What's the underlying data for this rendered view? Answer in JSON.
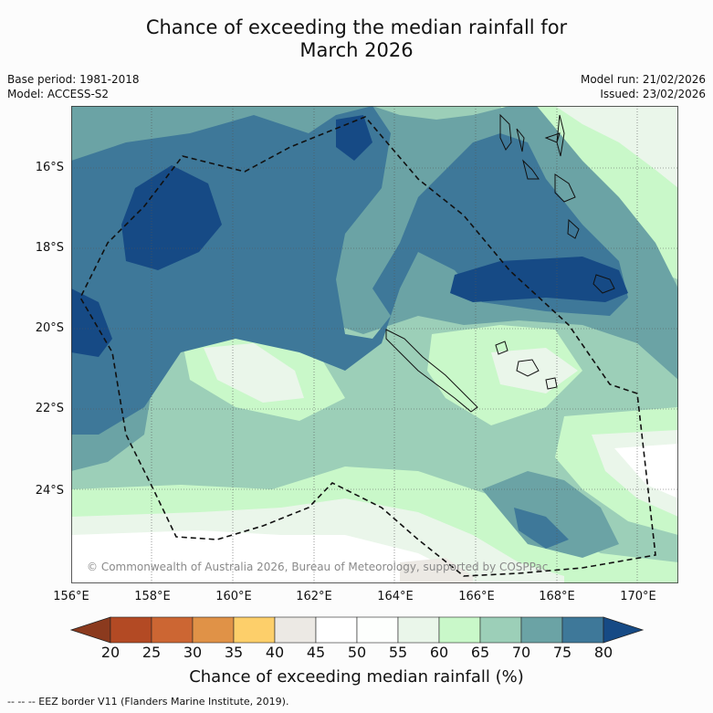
{
  "title_line1": "Chance of exceeding the median rainfall for",
  "title_line2": "March 2026",
  "base_period": "Base period: 1981-2018",
  "model": "Model: ACCESS-S2",
  "model_run": "Model run: 21/02/2026",
  "issued": "Issued: 23/02/2026",
  "lat_labels": [
    "16°S",
    "18°S",
    "20°S",
    "22°S",
    "24°S"
  ],
  "lon_labels": [
    "156°E",
    "158°E",
    "160°E",
    "162°E",
    "164°E",
    "166°E",
    "168°E",
    "170°E"
  ],
  "colorbar": {
    "ticks": [
      "20",
      "25",
      "30",
      "35",
      "40",
      "45",
      "50",
      "55",
      "60",
      "65",
      "70",
      "75",
      "80"
    ],
    "colors": [
      "#8b3a1e",
      "#b34a24",
      "#cc6633",
      "#e09247",
      "#fdcf6a",
      "#ece9e4",
      "#ffffff",
      "#fdfffd",
      "#eaf6ea",
      "#c9f8c9",
      "#9ccfb8",
      "#6ba3a5",
      "#3e7899",
      "#164a85"
    ],
    "label": "Chance of exceeding median rainfall (%)"
  },
  "legend_note": "--  --  -- EEZ border V11 (Flanders Marine Institute, 2019).",
  "copyright": "© Commonwealth of Australia 2026, Bureau of Meteorology, supported by COSPPac"
}
